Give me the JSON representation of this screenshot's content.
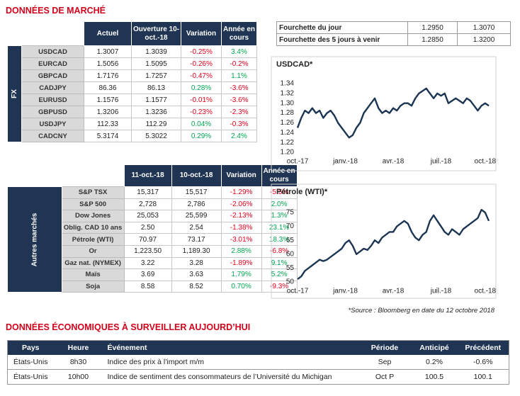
{
  "title": "DONNÉES DE MARCHÉ",
  "fx_table": {
    "side_label": "FX",
    "headers": [
      "Actuel",
      "Ouverture 10-oct.-18",
      "Variation",
      "Année en cours"
    ],
    "rows": [
      [
        "USDCAD",
        "1.3007",
        "1.3039",
        "-0.25%",
        "3.4%"
      ],
      [
        "EURCAD",
        "1.5056",
        "1.5095",
        "-0.26%",
        "-0.2%"
      ],
      [
        "GBPCAD",
        "1.7176",
        "1.7257",
        "-0.47%",
        "1.1%"
      ],
      [
        "CADJPY",
        "86.36",
        "86.13",
        "0.28%",
        "-3.6%"
      ],
      [
        "EURUSD",
        "1.1576",
        "1.1577",
        "-0.01%",
        "-3.6%"
      ],
      [
        "GBPUSD",
        "1.3206",
        "1.3236",
        "-0.23%",
        "-2.3%"
      ],
      [
        "USDJPY",
        "112.33",
        "112.29",
        "0.04%",
        "-0.3%"
      ],
      [
        "CADCNY",
        "5.3174",
        "5.3022",
        "0.29%",
        "2.4%"
      ]
    ]
  },
  "markets_table": {
    "side_label": "Autres marchés",
    "headers": [
      "11-oct.-18",
      "10-oct.-18",
      "Variation",
      "Année en cours"
    ],
    "rows": [
      [
        "S&P TSX",
        "15,317",
        "15,517",
        "-1.29%",
        "-5.5%"
      ],
      [
        "S&P 500",
        "2,728",
        "2,786",
        "-2.06%",
        "2.0%"
      ],
      [
        "Dow Jones",
        "25,053",
        "25,599",
        "-2.13%",
        "1.3%"
      ],
      [
        "Oblig. CAD 10 ans",
        "2.50",
        "2.54",
        "-1.38%",
        "23.1%"
      ],
      [
        "Pétrole (WTI)",
        "70.97",
        "73.17",
        "-3.01%",
        "18.3%"
      ],
      [
        "Or",
        "1,223.50",
        "1,189.30",
        "2.88%",
        "-6.8%"
      ],
      [
        "Gaz nat. (NYMEX)",
        "3.22",
        "3.28",
        "-1.89%",
        "9.1%"
      ],
      [
        "Maïs",
        "3.69",
        "3.63",
        "1.79%",
        "5.2%"
      ],
      [
        "Soja",
        "8.58",
        "8.52",
        "0.70%",
        "-9.3%"
      ]
    ]
  },
  "range_table": {
    "rows": [
      [
        "Fourchette du jour",
        "1.2950",
        "1.3070"
      ],
      [
        "Fourchette des 5 jours à venir",
        "1.2850",
        "1.3200"
      ]
    ]
  },
  "chart_data": [
    {
      "type": "line",
      "title": "USDCAD*",
      "color": "#1c3553",
      "values": [
        1.25,
        1.27,
        1.285,
        1.28,
        1.29,
        1.28,
        1.285,
        1.27,
        1.28,
        1.285,
        1.275,
        1.26,
        1.25,
        1.24,
        1.23,
        1.235,
        1.25,
        1.26,
        1.28,
        1.29,
        1.3,
        1.31,
        1.29,
        1.28,
        1.285,
        1.28,
        1.29,
        1.285,
        1.295,
        1.3,
        1.3,
        1.295,
        1.31,
        1.32,
        1.325,
        1.33,
        1.32,
        1.31,
        1.32,
        1.315,
        1.32,
        1.3,
        1.305,
        1.31,
        1.305,
        1.3,
        1.31,
        1.305,
        1.295,
        1.285,
        1.295,
        1.3,
        1.295
      ],
      "xlim": [
        0,
        52
      ],
      "xticks": [
        {
          "value": 0,
          "label": "oct.-17"
        },
        {
          "value": 13,
          "label": "janv.-18"
        },
        {
          "value": 26,
          "label": "avr.-18"
        },
        {
          "value": 39,
          "label": "juil.-18"
        },
        {
          "value": 51,
          "label": "oct.-18"
        }
      ],
      "ylim": [
        1.2,
        1.34
      ],
      "yticks": [
        {
          "value": 1.2,
          "label": "1.20"
        },
        1.22,
        1.24,
        1.26,
        1.28,
        {
          "value": 1.3,
          "label": "1.30"
        },
        1.32,
        1.34
      ]
    },
    {
      "type": "line",
      "title": "Pétrole (WTI)*",
      "color": "#1c3553",
      "values": [
        51,
        52,
        54,
        55,
        56,
        57,
        58,
        57.5,
        58,
        59,
        60,
        61,
        62,
        64,
        65,
        63,
        60,
        61,
        62,
        61.5,
        63,
        65,
        64,
        66,
        67,
        68,
        68,
        70,
        71,
        72,
        71,
        68,
        66,
        65,
        67,
        68,
        72,
        74,
        72,
        70,
        68,
        67,
        69,
        68,
        67,
        69,
        70,
        71,
        72,
        73,
        76,
        75,
        72
      ],
      "xlim": [
        0,
        52
      ],
      "xticks": [
        {
          "value": 0,
          "label": "oct.-17"
        },
        {
          "value": 13,
          "label": "janv.-18"
        },
        {
          "value": 26,
          "label": "avr.-18"
        },
        {
          "value": 39,
          "label": "juil.-18"
        },
        {
          "value": 51,
          "label": "oct.-18"
        }
      ],
      "ylim": [
        50,
        75
      ],
      "yticks": [
        50,
        55,
        60,
        65,
        70,
        75
      ]
    }
  ],
  "source": "*Source : Bloomberg en date du  12 octobre 2018",
  "eco": {
    "title": "DONNÉES ÉCONOMIQUES À SURVEILLER AUJOURD’HUI",
    "headers": [
      "Pays",
      "Heure",
      "Événement",
      "Période",
      "Anticipé",
      "Précédent"
    ],
    "rows": [
      [
        "États-Unis",
        "8h30",
        "Indice des prix à l’import m/m",
        "Sep",
        "0.2%",
        "-0.6%"
      ],
      [
        "États-Unis",
        "10h00",
        "Indice de sentiment des consommateurs de l’Université du Michigan",
        "Oct P",
        "100.5",
        "100.1"
      ]
    ]
  }
}
